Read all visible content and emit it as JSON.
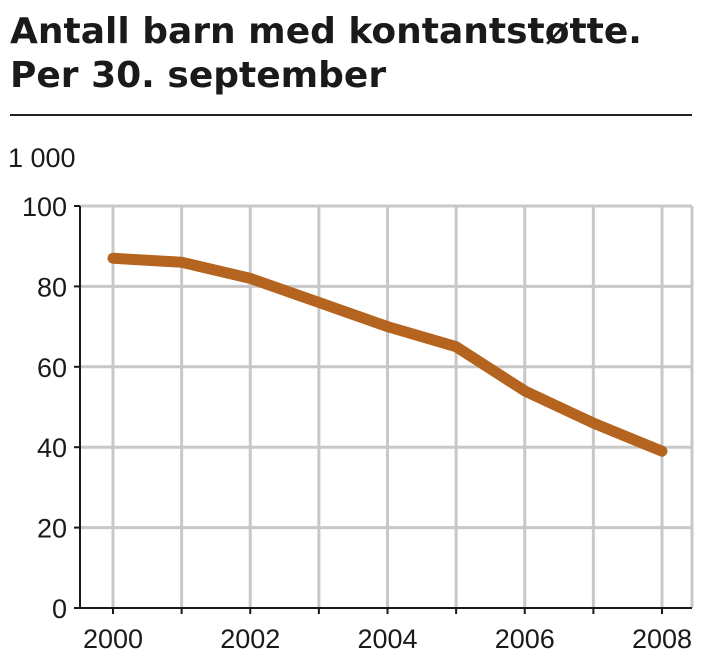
{
  "chart_data": {
    "type": "line",
    "title": "Antall barn med kontantstøtte.",
    "subtitle": "Per 30. september",
    "unit_label": "1 000",
    "x": [
      2000,
      2001,
      2002,
      2003,
      2004,
      2005,
      2006,
      2007,
      2008
    ],
    "x_tick_labels": [
      "2000",
      "2002",
      "2004",
      "2006",
      "2008"
    ],
    "y_tick_labels": [
      "0",
      "20",
      "40",
      "60",
      "80",
      "100"
    ],
    "ylim": [
      0,
      100
    ],
    "xlim": [
      2000,
      2008
    ],
    "grid": true,
    "series": [
      {
        "values": [
          87,
          86,
          82,
          76,
          70,
          65,
          54,
          46,
          39
        ],
        "color": "#b4641e"
      }
    ]
  }
}
